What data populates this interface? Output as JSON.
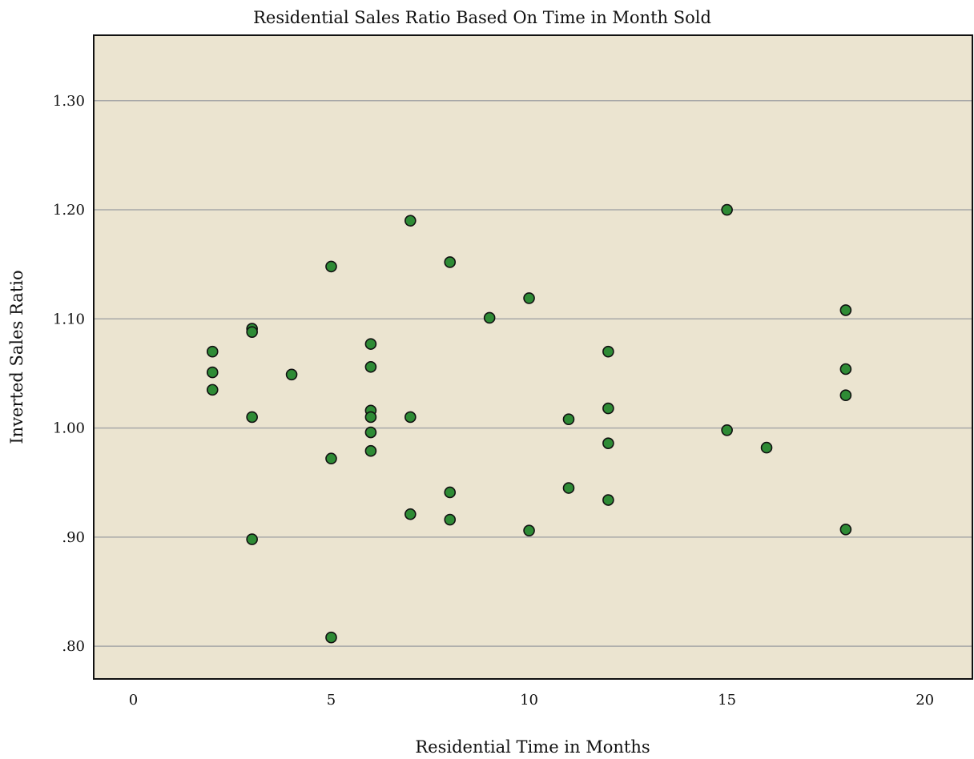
{
  "chart_data": {
    "type": "scatter",
    "title": "Residential Sales Ratio Based On Time in Month Sold",
    "xlabel": "Residential Time in Months",
    "ylabel": "Inverted Sales Ratio",
    "xlim": [
      -1.0,
      21.2
    ],
    "ylim": [
      0.77,
      1.36
    ],
    "x_ticks": [
      0,
      5,
      10,
      15,
      20
    ],
    "x_tick_labels": [
      "0",
      "5",
      "10",
      "15",
      "20"
    ],
    "y_ticks": [
      0.8,
      0.9,
      1.0,
      1.1,
      1.2,
      1.3
    ],
    "y_tick_labels": [
      ".80",
      ".90",
      "1.00",
      "1.10",
      "1.20",
      "1.30"
    ],
    "grid": "horizontal",
    "legend": "none",
    "colors": {
      "plot_background": "#ebe4d0",
      "marker_fill": "#2e8b35",
      "marker_stroke": "#111111",
      "grid": "#a8a8a8",
      "frame": "#111111"
    },
    "series": [
      {
        "points": [
          {
            "x": 2,
            "y": 1.07
          },
          {
            "x": 2,
            "y": 1.051
          },
          {
            "x": 2,
            "y": 1.035
          },
          {
            "x": 3,
            "y": 1.091
          },
          {
            "x": 3,
            "y": 1.088
          },
          {
            "x": 3,
            "y": 1.01
          },
          {
            "x": 3,
            "y": 0.898
          },
          {
            "x": 4,
            "y": 1.049
          },
          {
            "x": 5,
            "y": 1.148
          },
          {
            "x": 5,
            "y": 0.972
          },
          {
            "x": 5,
            "y": 0.808
          },
          {
            "x": 6,
            "y": 1.077
          },
          {
            "x": 6,
            "y": 1.056
          },
          {
            "x": 6,
            "y": 1.016
          },
          {
            "x": 6,
            "y": 1.01
          },
          {
            "x": 6,
            "y": 0.996
          },
          {
            "x": 6,
            "y": 0.979
          },
          {
            "x": 7,
            "y": 1.19
          },
          {
            "x": 7,
            "y": 1.01
          },
          {
            "x": 7,
            "y": 0.921
          },
          {
            "x": 8,
            "y": 1.152
          },
          {
            "x": 8,
            "y": 0.941
          },
          {
            "x": 8,
            "y": 0.916
          },
          {
            "x": 9,
            "y": 1.101
          },
          {
            "x": 10,
            "y": 1.119
          },
          {
            "x": 10,
            "y": 0.906
          },
          {
            "x": 11,
            "y": 1.008
          },
          {
            "x": 11,
            "y": 0.945
          },
          {
            "x": 12,
            "y": 1.07
          },
          {
            "x": 12,
            "y": 1.018
          },
          {
            "x": 12,
            "y": 0.986
          },
          {
            "x": 12,
            "y": 0.934
          },
          {
            "x": 15,
            "y": 1.2
          },
          {
            "x": 15,
            "y": 0.998
          },
          {
            "x": 16,
            "y": 0.982
          },
          {
            "x": 18,
            "y": 1.108
          },
          {
            "x": 18,
            "y": 1.054
          },
          {
            "x": 18,
            "y": 1.03
          },
          {
            "x": 18,
            "y": 0.907
          }
        ]
      }
    ]
  }
}
